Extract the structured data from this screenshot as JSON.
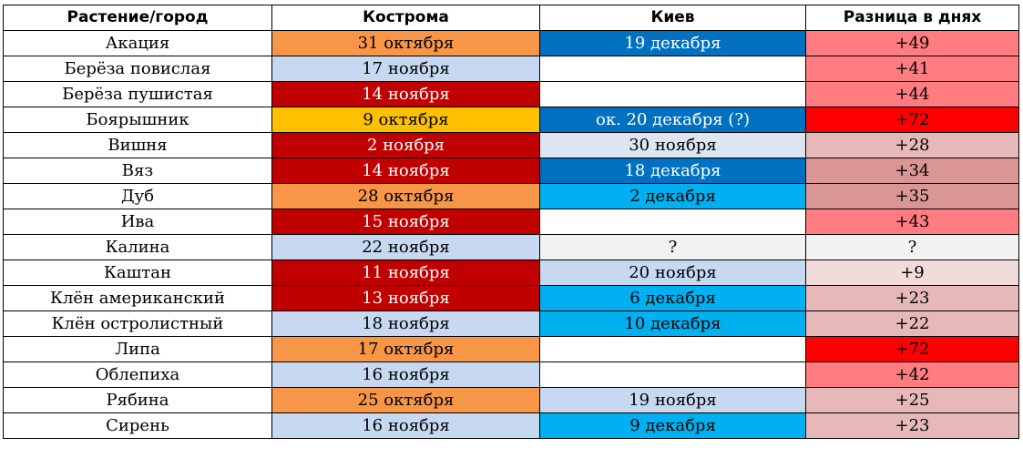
{
  "headers": [
    "Растение/город",
    "Кострома",
    "Киев",
    "Разница в днях"
  ],
  "colors": {
    "orange": "#F79646",
    "light_blue": "#C6D9F1",
    "dark_red": "#C00000",
    "gold": "#FFC000",
    "dark_blue": "#0070C0",
    "cyan": "#00B0F0",
    "pale_blue": "#DCE6F2",
    "light_gray": "#F2F2F2",
    "white": "#FFFFFF",
    "diff_pink": "#FF7C80",
    "diff_red": "#FF0000",
    "diff_rose": "#E6B9B8",
    "diff_dusty": "#D99694",
    "diff_pale": "#F2DCDB"
  },
  "rows": [
    {
      "plant": "Акация",
      "kostroma": "31 октября",
      "k_color": "orange",
      "kiev": "19 декабря",
      "kv_color": "dark_blue",
      "diff": "+49",
      "d_color": "diff_pink"
    },
    {
      "plant": "Берёза повислая",
      "kostroma": "17 ноября",
      "k_color": "light_blue",
      "kiev": "",
      "kv_color": "white",
      "diff": "+41",
      "d_color": "diff_pink"
    },
    {
      "plant": "Берёза пушистая",
      "kostroma": "14 ноября",
      "k_color": "dark_red",
      "kiev": "",
      "kv_color": "white",
      "diff": "+44",
      "d_color": "diff_pink"
    },
    {
      "plant": "Боярышник",
      "kostroma": "9 октября",
      "k_color": "gold",
      "kiev": "ок. 20 декабря (?)",
      "kv_color": "dark_blue",
      "diff": "+72",
      "d_color": "diff_red"
    },
    {
      "plant": "Вишня",
      "kostroma": "2 ноября",
      "k_color": "dark_red",
      "kiev": "30 ноября",
      "kv_color": "pale_blue",
      "diff": "+28",
      "d_color": "diff_rose"
    },
    {
      "plant": "Вяз",
      "kostroma": "14 ноября",
      "k_color": "dark_red",
      "kiev": "18 декабря",
      "kv_color": "dark_blue",
      "diff": "+34",
      "d_color": "diff_dusty"
    },
    {
      "plant": "Дуб",
      "kostroma": "28 октября",
      "k_color": "orange",
      "kiev": "2 декабря",
      "kv_color": "cyan",
      "diff": "+35",
      "d_color": "diff_dusty"
    },
    {
      "plant": "Ива",
      "kostroma": "15 ноября",
      "k_color": "dark_red",
      "kiev": "",
      "kv_color": "white",
      "diff": "+43",
      "d_color": "diff_pink"
    },
    {
      "plant": "Калина",
      "kostroma": "22 ноября",
      "k_color": "light_blue",
      "kiev": "?",
      "kv_color": "light_gray",
      "diff": "?",
      "d_color": "light_gray"
    },
    {
      "plant": "Каштан",
      "kostroma": "11 ноября",
      "k_color": "dark_red",
      "kiev": "20 ноября",
      "kv_color": "light_blue",
      "diff": "+9",
      "d_color": "diff_pale"
    },
    {
      "plant": "Клён американский",
      "kostroma": "13 ноября",
      "k_color": "dark_red",
      "kiev": "6 декабря",
      "kv_color": "cyan",
      "diff": "+23",
      "d_color": "diff_rose"
    },
    {
      "plant": "Клён остролистный",
      "kostroma": "18 ноября",
      "k_color": "light_blue",
      "kiev": "10 декабря",
      "kv_color": "cyan",
      "diff": "+22",
      "d_color": "diff_rose"
    },
    {
      "plant": "Липа",
      "kostroma": "17 октября",
      "k_color": "orange",
      "kiev": "",
      "kv_color": "white",
      "diff": "+72",
      "d_color": "diff_red"
    },
    {
      "plant": "Облепиха",
      "kostroma": "16 ноября",
      "k_color": "light_blue",
      "kiev": "",
      "kv_color": "white",
      "diff": "+42",
      "d_color": "diff_pink"
    },
    {
      "plant": "Рябина",
      "kostroma": "25 октября",
      "k_color": "orange",
      "kiev": "19 ноября",
      "kv_color": "light_blue",
      "diff": "+25",
      "d_color": "diff_rose"
    },
    {
      "plant": "Сирень",
      "kostroma": "16 ноября",
      "k_color": "light_blue",
      "kiev": "9 декабря",
      "kv_color": "cyan",
      "diff": "+23",
      "d_color": "diff_rose"
    }
  ]
}
